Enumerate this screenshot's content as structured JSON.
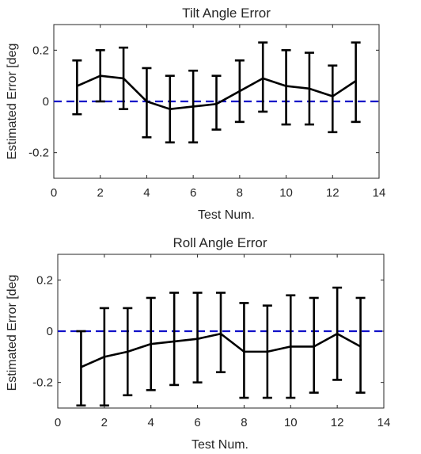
{
  "colors": {
    "series": "#000000",
    "reference_line": "#1010c8",
    "axes": "#262626"
  },
  "chart_data": [
    {
      "type": "line",
      "title": "Tilt Angle Error",
      "xlabel": "Test Num.",
      "ylabel": "Estimated Error [deg",
      "xlim": [
        0,
        14
      ],
      "ylim": [
        -0.3,
        0.3
      ],
      "xticks": [
        "0",
        "2",
        "4",
        "6",
        "8",
        "10",
        "12",
        "14"
      ],
      "yticks": [
        "-0.2",
        "0",
        "0.2"
      ],
      "x": [
        1,
        2,
        3,
        4,
        5,
        6,
        7,
        8,
        9,
        10,
        11,
        12,
        13
      ],
      "values": [
        0.06,
        0.1,
        0.09,
        0.0,
        -0.03,
        -0.02,
        -0.01,
        0.04,
        0.09,
        0.06,
        0.05,
        0.02,
        0.08
      ],
      "upper": [
        0.16,
        0.2,
        0.21,
        0.13,
        0.1,
        0.12,
        0.1,
        0.16,
        0.23,
        0.2,
        0.19,
        0.14,
        0.23
      ],
      "lower": [
        -0.05,
        0.0,
        -0.03,
        -0.14,
        -0.16,
        -0.16,
        -0.11,
        -0.08,
        -0.04,
        -0.09,
        -0.09,
        -0.12,
        -0.08
      ],
      "reference_line": 0,
      "grid": false
    },
    {
      "type": "line",
      "title": "Roll Angle Error",
      "xlabel": "Test Num.",
      "ylabel": "Estimated Error [deg",
      "xlim": [
        0,
        14
      ],
      "ylim": [
        -0.3,
        0.3
      ],
      "xticks": [
        "0",
        "2",
        "4",
        "6",
        "8",
        "10",
        "12",
        "14"
      ],
      "yticks": [
        "-0.2",
        "0",
        "0.2"
      ],
      "x": [
        1,
        2,
        3,
        4,
        5,
        6,
        7,
        8,
        9,
        10,
        11,
        12,
        13
      ],
      "values": [
        -0.14,
        -0.1,
        -0.08,
        -0.05,
        -0.04,
        -0.03,
        -0.01,
        -0.08,
        -0.08,
        -0.06,
        -0.06,
        -0.01,
        -0.06
      ],
      "upper": [
        0.0,
        0.09,
        0.09,
        0.13,
        0.15,
        0.15,
        0.15,
        0.11,
        0.1,
        0.14,
        0.13,
        0.17,
        0.13
      ],
      "lower": [
        -0.29,
        -0.29,
        -0.25,
        -0.23,
        -0.21,
        -0.2,
        -0.16,
        -0.26,
        -0.26,
        -0.26,
        -0.24,
        -0.19,
        -0.24
      ],
      "reference_line": 0,
      "grid": false
    }
  ]
}
